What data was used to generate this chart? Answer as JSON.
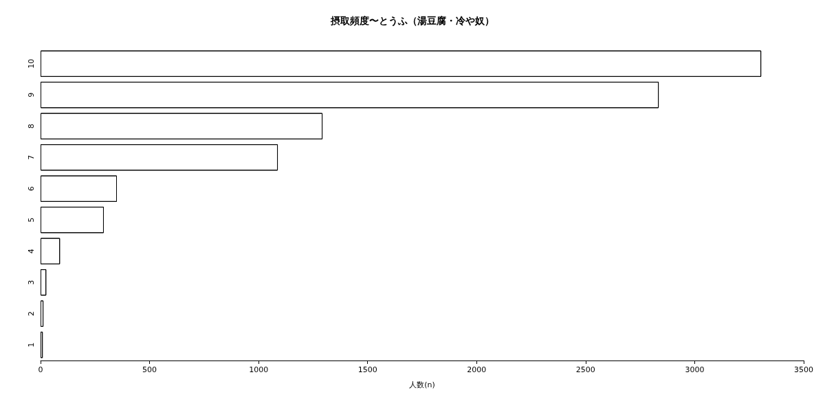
{
  "chart_data": {
    "type": "bar",
    "orientation": "horizontal",
    "title": "摂取頻度〜とうふ（湯豆腐・冷や奴）",
    "xlabel": "人数(n)",
    "categories": [
      "10",
      "9",
      "8",
      "7",
      "6",
      "5",
      "4",
      "3",
      "2",
      "1"
    ],
    "values": [
      3305,
      2835,
      1293,
      1088,
      350,
      290,
      89,
      26,
      13,
      10
    ],
    "color": "#ffffff",
    "xlim": [
      0,
      3500
    ],
    "xticks": [
      0,
      500,
      1000,
      1500,
      2000,
      2500,
      3000,
      3500
    ],
    "grid": false
  }
}
